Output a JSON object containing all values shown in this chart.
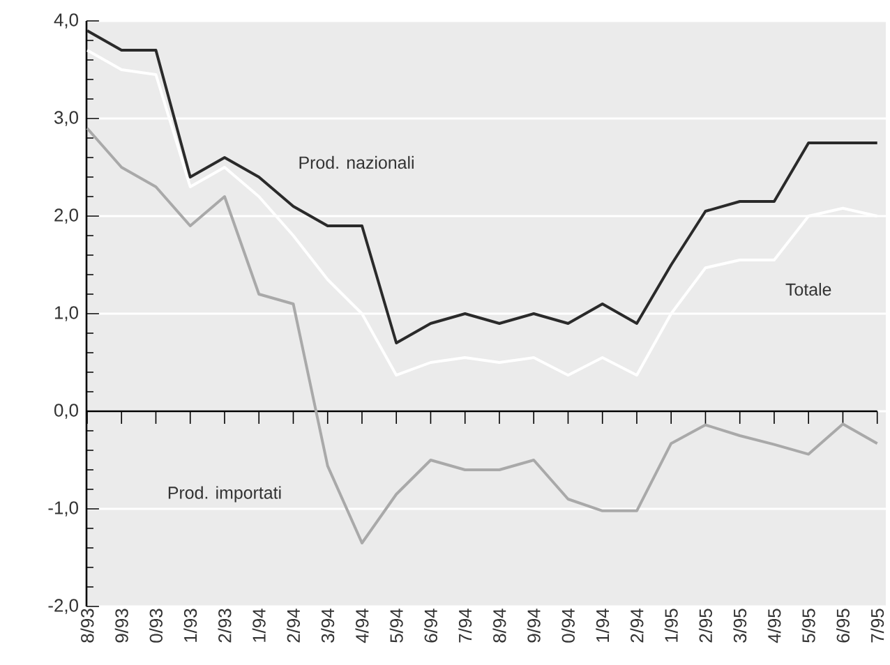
{
  "chart_data": {
    "type": "line",
    "categories": [
      "8/93",
      "9/93",
      "0/93",
      "1/93",
      "2/93",
      "1/94",
      "2/94",
      "3/94",
      "4/94",
      "5/94",
      "6/94",
      "7/94",
      "8/94",
      "9/94",
      "0/94",
      "1/94",
      "2/94",
      "1/95",
      "2/95",
      "3/95",
      "4/95",
      "5/95",
      "6/95",
      "7/95"
    ],
    "series": [
      {
        "name": "Totale",
        "color": "#ffffff",
        "values": [
          3.7,
          3.5,
          3.45,
          2.3,
          2.5,
          2.2,
          1.8,
          1.35,
          1.0,
          0.37,
          0.5,
          0.55,
          0.5,
          0.55,
          0.37,
          0.55,
          0.37,
          1.0,
          1.47,
          1.55,
          1.55,
          2.0,
          2.08,
          2.0
        ]
      },
      {
        "name": "Prod. importati",
        "color": "#a9a9a9",
        "values": [
          2.9,
          2.5,
          2.3,
          1.9,
          2.2,
          1.2,
          1.1,
          -0.56,
          -1.35,
          -0.85,
          -0.5,
          -0.6,
          -0.6,
          -0.5,
          -0.9,
          -1.02,
          -1.02,
          -0.33,
          -0.14,
          -0.25,
          -0.34,
          -0.44,
          -0.13,
          -0.33
        ]
      },
      {
        "name": "Prod. nazionali",
        "color": "#2a2a2a",
        "values": [
          3.9,
          3.7,
          3.7,
          2.4,
          2.6,
          2.4,
          2.1,
          1.9,
          1.9,
          0.7,
          0.9,
          1.0,
          0.9,
          1.0,
          0.9,
          1.1,
          0.9,
          1.5,
          2.05,
          2.15,
          2.15,
          2.75,
          2.75,
          2.75
        ]
      }
    ],
    "ylim": [
      -2,
      4
    ],
    "yticks": [
      {
        "value": -2,
        "label": "-2,0"
      },
      {
        "value": -1,
        "label": "-1,0"
      },
      {
        "value": 0,
        "label": "0,0"
      },
      {
        "value": 1,
        "label": "1,0"
      },
      {
        "value": 2,
        "label": "2,0"
      },
      {
        "value": 3,
        "label": "3,0"
      },
      {
        "value": 4,
        "label": "4,0"
      }
    ],
    "grid": "y"
  }
}
